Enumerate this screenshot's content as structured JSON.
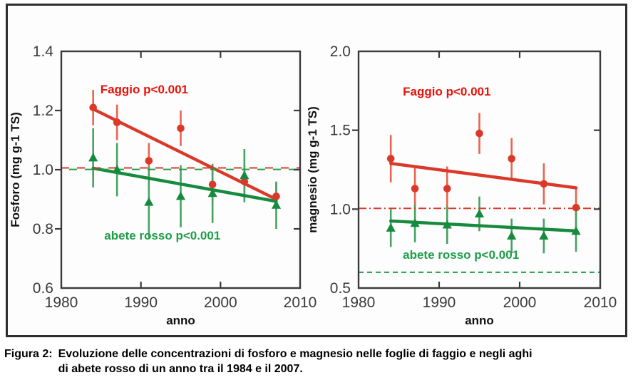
{
  "caption": {
    "prefix": "Figura 2:",
    "line1": "Evoluzione delle concentrazioni di fosforo e magnesio nelle foglie di faggio e negli aghi",
    "line2": "di abete rosso di un anno tra il 1984 e il 2007."
  },
  "chart_data": [
    {
      "type": "scatter",
      "element": "fosforo",
      "xlabel": "anno",
      "ylabel": "Fosforo (mg g-1 TS)",
      "xlim": [
        1980,
        2010
      ],
      "ylim": [
        0.6,
        1.4
      ],
      "xticks": [
        1980,
        1990,
        2000,
        2010
      ],
      "xtick_labels": [
        "1980",
        "1990",
        "2000",
        "2010"
      ],
      "yticks": [
        0.6,
        0.8,
        1.0,
        1.2,
        1.4
      ],
      "ytick_labels": [
        "0.6",
        "0.8",
        "1.0",
        "1.2",
        "1.4"
      ],
      "interior_xticks": [
        1990,
        2000
      ],
      "interior_yticks": [
        0.8,
        1.0,
        1.2
      ],
      "grid": false,
      "x": [
        1984,
        1987,
        1991,
        1995,
        1999,
        2003,
        2007
      ],
      "series": [
        {
          "name": "Faggio",
          "annotation": "Faggio p<0.001",
          "annotation_anchor": {
            "year": 1984.9,
            "value": 1.272
          },
          "marker": "circle",
          "color": "#da392a",
          "light_color": "#ea6450",
          "text_color": "#ea1208",
          "ref_color": "#da392a",
          "ref_style": "dashdot",
          "ref_y": 1.006,
          "values": [
            1.21,
            1.16,
            1.03,
            1.14,
            0.95,
            0.96,
            0.91
          ],
          "errors": [
            0.06,
            0.06,
            0.06,
            0.06,
            0.06,
            0.055,
            0.045
          ],
          "trend": {
            "x1": 1984,
            "y1": 1.205,
            "x2": 2007,
            "y2": 0.9
          }
        },
        {
          "name": "abete rosso",
          "annotation": "abete rosso p<0.001",
          "annotation_anchor": {
            "year": 1985.4,
            "value": 0.778
          },
          "marker": "triangle",
          "color": "#168a3e",
          "light_color": "#46a263",
          "text_color": "#1f9e48",
          "ref_color": "#1f9e48",
          "ref_style": "dashed",
          "ref_y": 1.001,
          "values": [
            1.04,
            1.0,
            0.89,
            0.91,
            0.92,
            0.98,
            0.88
          ],
          "errors": [
            0.1,
            0.09,
            0.12,
            0.105,
            0.1,
            0.09,
            0.08
          ],
          "trend": {
            "x1": 1984,
            "y1": 1.005,
            "x2": 2007,
            "y2": 0.893
          }
        }
      ]
    },
    {
      "type": "scatter",
      "element": "magnesio",
      "xlabel": "anno",
      "ylabel": "magnesio (mg g-1 TS)",
      "xlim": [
        1980,
        2010
      ],
      "ylim": [
        0.5,
        2.0
      ],
      "xticks": [
        1980,
        1990,
        2000,
        2010
      ],
      "xtick_labels": [
        "1980",
        "1990",
        "2000",
        "2010"
      ],
      "yticks": [
        0.5,
        1.0,
        1.5,
        2.0
      ],
      "ytick_labels": [
        "0.5",
        "1.0",
        "1.5",
        "2.0"
      ],
      "interior_xticks": [
        1990,
        2000
      ],
      "interior_yticks": [
        1.0,
        1.5
      ],
      "grid": false,
      "x": [
        1984,
        1987,
        1991,
        1995,
        1999,
        2003,
        2007
      ],
      "series": [
        {
          "name": "Faggio",
          "annotation": "Faggio p<0.001",
          "annotation_anchor": {
            "year": 1985.5,
            "value": 1.748
          },
          "marker": "circle",
          "color": "#da392a",
          "light_color": "#ea6450",
          "text_color": "#ea1208",
          "ref_color": "#da392a",
          "ref_style": "dashdot",
          "ref_y": 1.005,
          "values": [
            1.32,
            1.13,
            1.13,
            1.48,
            1.32,
            1.16,
            1.01
          ],
          "errors": [
            0.15,
            0.13,
            0.14,
            0.13,
            0.13,
            0.13,
            0.13
          ],
          "trend": {
            "x1": 1984,
            "y1": 1.29,
            "x2": 2007,
            "y2": 1.135
          }
        },
        {
          "name": "abete rosso",
          "annotation": "abete rosso p<0.001",
          "annotation_anchor": {
            "year": 1985.5,
            "value": 0.712
          },
          "marker": "triangle",
          "color": "#168a3e",
          "light_color": "#46a263",
          "text_color": "#1f9e48",
          "ref_color": "#1f9e48",
          "ref_style": "dashed",
          "ref_y": 0.6,
          "values": [
            0.88,
            0.91,
            0.9,
            0.97,
            0.83,
            0.83,
            0.86
          ],
          "errors": [
            0.12,
            0.12,
            0.12,
            0.11,
            0.11,
            0.11,
            0.13
          ],
          "trend": {
            "x1": 1984,
            "y1": 0.925,
            "x2": 2007,
            "y2": 0.862
          }
        }
      ]
    }
  ]
}
